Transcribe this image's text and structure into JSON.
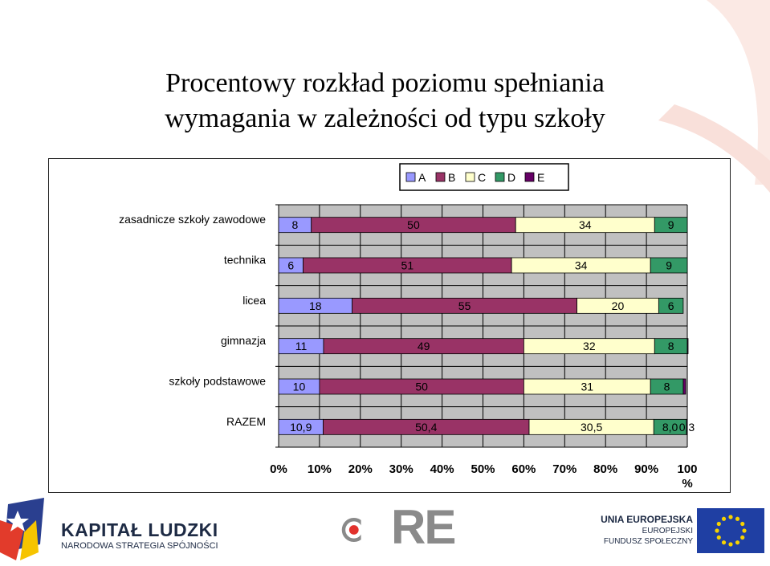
{
  "title_lines": [
    "Procentowy rozkład poziomu spełniania",
    "wymagania w zależności od typu szkoły"
  ],
  "chart_data": {
    "type": "bar",
    "orientation": "horizontal",
    "stacked": "percent",
    "categories": [
      "zasadnicze szkoły zawodowe",
      "technika",
      "licea",
      "gimnazja",
      "szkoły podstawowe",
      "RAZEM"
    ],
    "series": [
      {
        "name": "A",
        "color": "#9999ff",
        "values": [
          8,
          6,
          18,
          11,
          10,
          10.9
        ],
        "labels": [
          "8",
          "6",
          "18",
          "11",
          "10",
          "10,9"
        ]
      },
      {
        "name": "B",
        "color": "#993366",
        "values": [
          50,
          51,
          55,
          49,
          50,
          50.4
        ],
        "labels": [
          "50",
          "51",
          "55",
          "49",
          "50",
          "50,4"
        ]
      },
      {
        "name": "C",
        "color": "#ffffcc",
        "values": [
          34,
          34,
          20,
          32,
          31,
          30.5
        ],
        "labels": [
          "34",
          "34",
          "20",
          "32",
          "31",
          "30,5"
        ]
      },
      {
        "name": "D",
        "color": "#339966",
        "values": [
          9,
          9,
          6,
          8,
          8,
          8.0
        ],
        "labels": [
          "9",
          "9",
          "6",
          "8",
          "8",
          "8,0"
        ]
      },
      {
        "name": "E",
        "color": "#660066",
        "values": [
          0,
          0,
          0,
          0.6,
          0.6,
          0.3
        ],
        "labels": [
          "",
          "",
          "",
          "",
          "",
          "0,3"
        ]
      }
    ],
    "xticks": [
      "0%",
      "10%",
      "20%",
      "30%",
      "40%",
      "50%",
      "60%",
      "70%",
      "80%",
      "90%",
      "100"
    ],
    "xtick_suffix": "%",
    "xlim": [
      0,
      100
    ],
    "grid": true,
    "legend": "top-center"
  },
  "footer": {
    "kapital_title": "KAPITAŁ LUDZKI",
    "kapital_subtitle": "NARODOWA STRATEGIA SPÓJNOŚCI",
    "ore_text": "RE",
    "eu_line1": "UNIA EUROPEJSKA",
    "eu_line2": "EUROPEJSKI",
    "eu_line3": "FUNDUSZ SPOŁECZNY"
  }
}
